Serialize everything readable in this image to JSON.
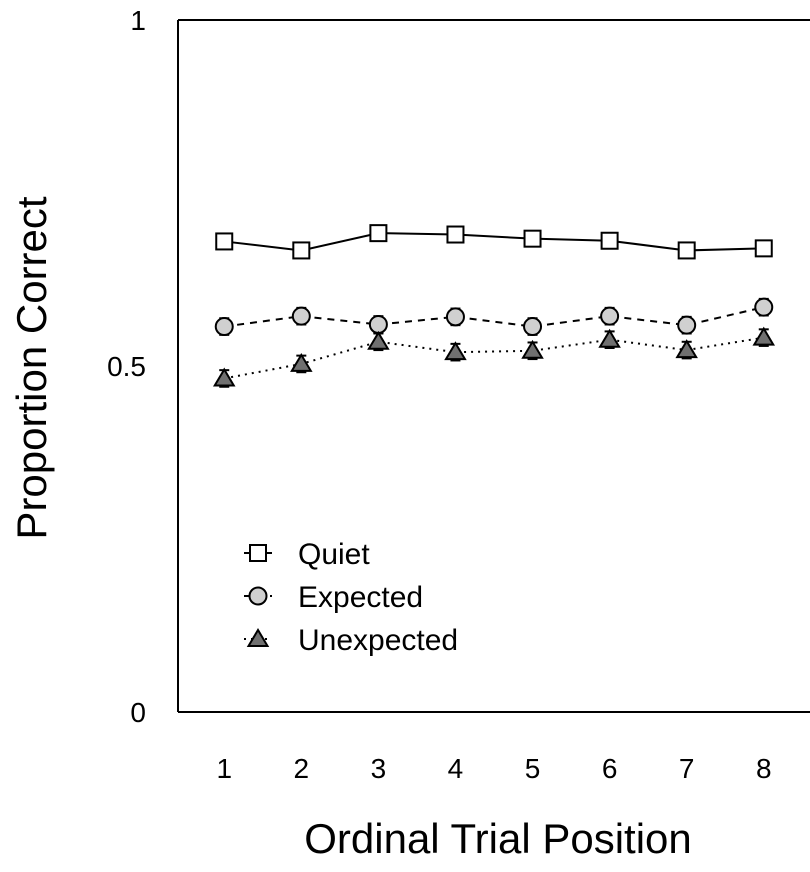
{
  "chart_data": {
    "type": "line",
    "xlabel": "Ordinal Trial Position",
    "ylabel": "Proportion Correct",
    "x": [
      1,
      2,
      3,
      4,
      5,
      6,
      7,
      8
    ],
    "xlim": [
      0.4,
      8.6
    ],
    "ylim": [
      0,
      1
    ],
    "yticks": [
      {
        "value": 0,
        "label": "0"
      },
      {
        "value": 0.5,
        "label": "0.5"
      },
      {
        "value": 1,
        "label": "1"
      }
    ],
    "legend_position": "lower-left",
    "series": [
      {
        "name": "Quiet",
        "marker": "square",
        "line_style": "solid",
        "fill": "#ffffff",
        "values": [
          0.68,
          0.667,
          0.692,
          0.69,
          0.684,
          0.681,
          0.667,
          0.67
        ],
        "errors": [
          0.01,
          0.01,
          0.01,
          0.01,
          0.01,
          0.01,
          0.01,
          0.01
        ]
      },
      {
        "name": "Expected",
        "marker": "circle",
        "line_style": "dashed",
        "fill": "#d0d0d0",
        "values": [
          0.557,
          0.572,
          0.56,
          0.571,
          0.557,
          0.572,
          0.559,
          0.585
        ],
        "errors": [
          0.012,
          0.012,
          0.012,
          0.012,
          0.012,
          0.012,
          0.012,
          0.012
        ]
      },
      {
        "name": "Unexpected",
        "marker": "triangle",
        "line_style": "dotted",
        "fill": "#707070",
        "values": [
          0.482,
          0.503,
          0.535,
          0.52,
          0.522,
          0.538,
          0.523,
          0.541
        ],
        "errors": [
          0.012,
          0.012,
          0.012,
          0.012,
          0.012,
          0.012,
          0.012,
          0.012
        ]
      }
    ]
  }
}
